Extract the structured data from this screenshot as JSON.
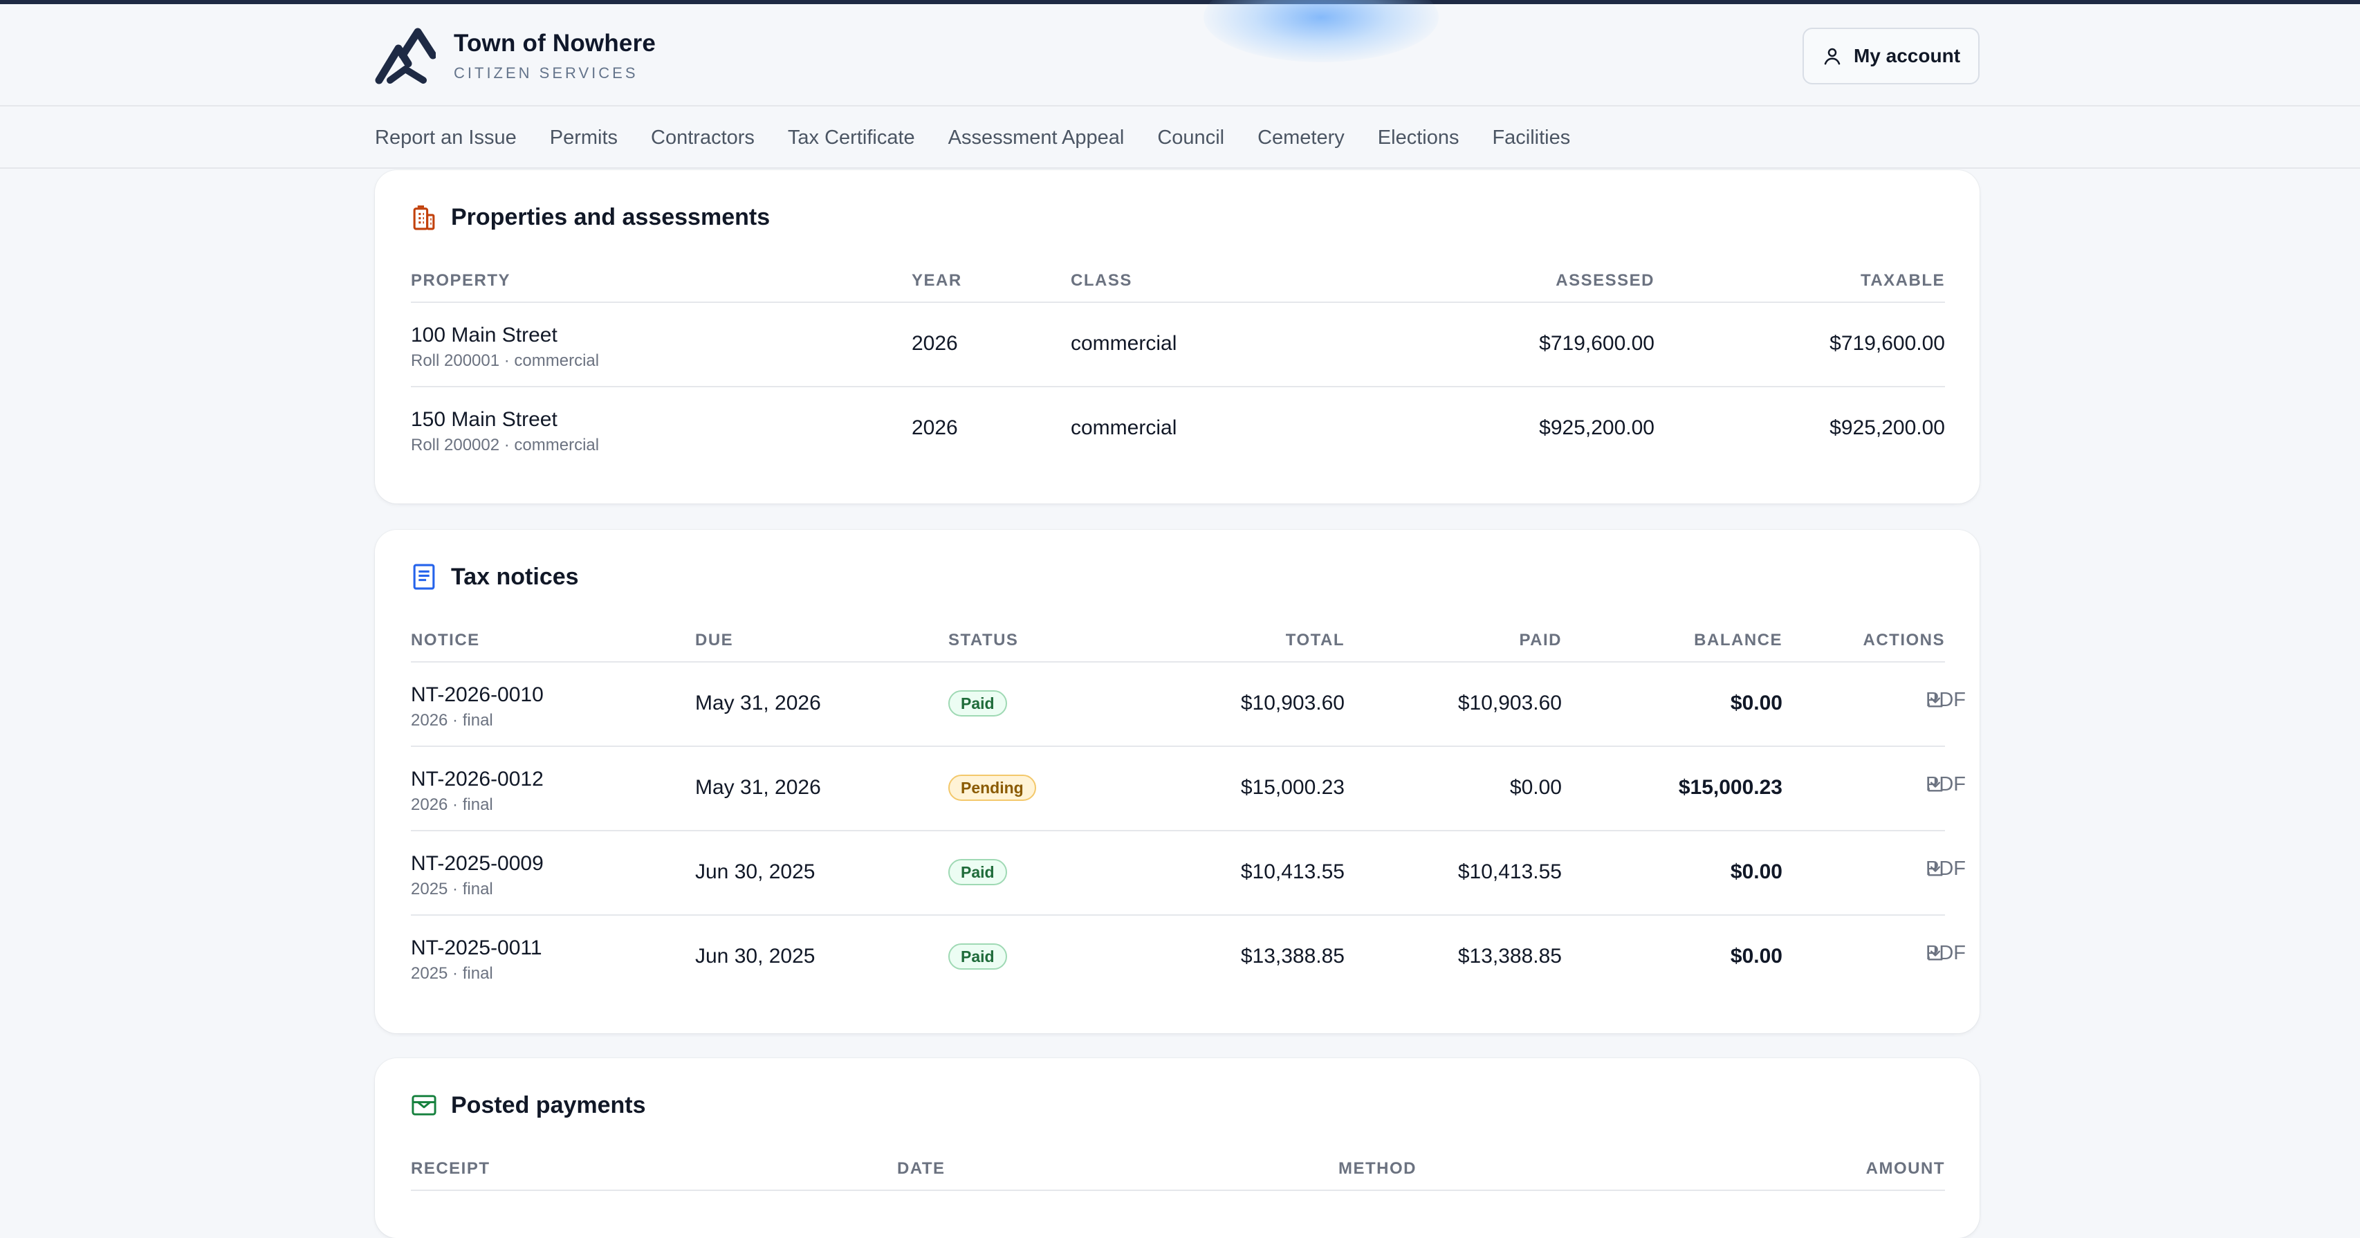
{
  "brand": {
    "title": "Town of Nowhere",
    "subtitle": "CITIZEN SERVICES"
  },
  "account": {
    "label": "My account",
    "icon": "user-icon"
  },
  "nav": {
    "items": [
      "Report an Issue",
      "Permits",
      "Contractors",
      "Tax Certificate",
      "Assessment Appeal",
      "Council",
      "Cemetery",
      "Elections",
      "Facilities"
    ]
  },
  "properties": {
    "title": "Properties and assessments",
    "icon": "building-icon",
    "columns": {
      "property": "PROPERTY",
      "year": "YEAR",
      "class": "CLASS",
      "assessed": "ASSESSED",
      "taxable": "TAXABLE"
    },
    "rows": [
      {
        "name": "100 Main Street",
        "sub": "Roll 200001 · commercial",
        "year": "2026",
        "class": "commercial",
        "assessed": "$719,600.00",
        "taxable": "$719,600.00"
      },
      {
        "name": "150 Main Street",
        "sub": "Roll 200002 · commercial",
        "year": "2026",
        "class": "commercial",
        "assessed": "$925,200.00",
        "taxable": "$925,200.00"
      }
    ]
  },
  "notices": {
    "title": "Tax notices",
    "icon": "document-icon",
    "columns": {
      "notice": "NOTICE",
      "due": "DUE",
      "status": "STATUS",
      "total": "TOTAL",
      "paid": "PAID",
      "balance": "BALANCE",
      "actions": "ACTIONS"
    },
    "pdf_label": "PDF",
    "rows": [
      {
        "id": "NT-2026-0010",
        "sub": "2026 · final",
        "due": "May 31, 2026",
        "status": "Paid",
        "total": "$10,903.60",
        "paid": "$10,903.60",
        "balance": "$0.00"
      },
      {
        "id": "NT-2026-0012",
        "sub": "2026 · final",
        "due": "May 31, 2026",
        "status": "Pending",
        "total": "$15,000.23",
        "paid": "$0.00",
        "balance": "$15,000.23"
      },
      {
        "id": "NT-2025-0009",
        "sub": "2025 · final",
        "due": "Jun 30, 2025",
        "status": "Paid",
        "total": "$10,413.55",
        "paid": "$10,413.55",
        "balance": "$0.00"
      },
      {
        "id": "NT-2025-0011",
        "sub": "2025 · final",
        "due": "Jun 30, 2025",
        "status": "Paid",
        "total": "$13,388.85",
        "paid": "$13,388.85",
        "balance": "$0.00"
      }
    ]
  },
  "payments": {
    "title": "Posted payments",
    "icon": "receipt-icon",
    "columns": {
      "receipt": "RECEIPT",
      "date": "DATE",
      "method": "METHOD",
      "amount": "AMOUNT"
    }
  },
  "colors": {
    "accent_bar": "#1e2a44",
    "properties_icon": "#c2410c",
    "notices_icon": "#2563eb",
    "payments_icon": "#15803d",
    "paid_badge": "#1f6b3a",
    "pending_badge": "#8a5a00"
  }
}
